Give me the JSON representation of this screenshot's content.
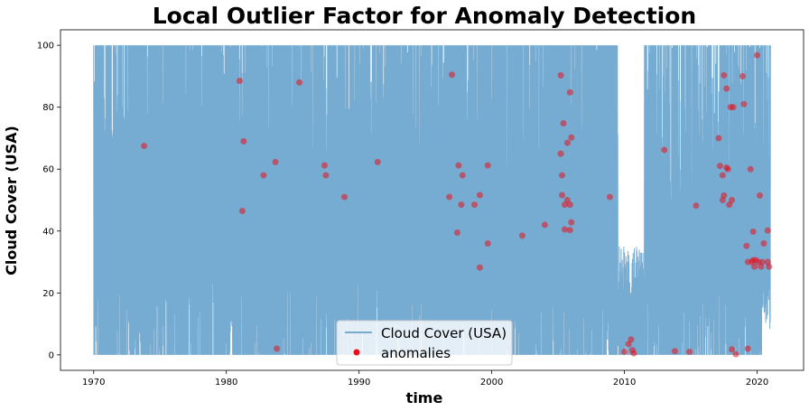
{
  "chart_data": {
    "type": "line",
    "title": "Local Outlier Factor for Anomaly Detection",
    "xlabel": "time",
    "ylabel": "Cloud Cover (USA)",
    "xlim": [
      1967.5,
      2023.5
    ],
    "ylim": [
      -5,
      105
    ],
    "xticks": [
      1970,
      1980,
      1990,
      2000,
      2010,
      2020
    ],
    "yticks": [
      0,
      20,
      40,
      60,
      80,
      100
    ],
    "grid": false,
    "legend_position": "bottom-center",
    "series": [
      {
        "name": "Cloud Cover (USA)",
        "kind": "line",
        "color": "#77acd2",
        "x_range": [
          1970,
          2021
        ],
        "y_range": [
          0,
          100
        ]
      },
      {
        "name": "anomalies",
        "kind": "scatter",
        "color": "#e8101c",
        "points": [
          [
            1973.8,
            67.5
          ],
          [
            1981.0,
            88.5
          ],
          [
            1981.3,
            69.0
          ],
          [
            1981.2,
            46.5
          ],
          [
            1982.8,
            58.0
          ],
          [
            1983.7,
            62.3
          ],
          [
            1983.8,
            2.0
          ],
          [
            1985.5,
            88.0
          ],
          [
            1987.4,
            61.2
          ],
          [
            1987.5,
            58.0
          ],
          [
            1988.9,
            51.0
          ],
          [
            1991.4,
            62.3
          ],
          [
            1997.0,
            90.5
          ],
          [
            1996.8,
            51.0
          ],
          [
            1997.5,
            61.2
          ],
          [
            1997.8,
            58.0
          ],
          [
            1997.7,
            48.5
          ],
          [
            1997.4,
            39.5
          ],
          [
            1998.7,
            48.5
          ],
          [
            1999.1,
            51.6
          ],
          [
            1999.1,
            28.2
          ],
          [
            1999.7,
            36.0
          ],
          [
            1999.7,
            61.2
          ],
          [
            2002.3,
            38.5
          ],
          [
            2004.0,
            42.0
          ],
          [
            2005.2,
            90.3
          ],
          [
            2005.9,
            84.8
          ],
          [
            2005.4,
            74.8
          ],
          [
            2006.0,
            70.2
          ],
          [
            2005.7,
            68.5
          ],
          [
            2005.2,
            65.0
          ],
          [
            2005.3,
            58.0
          ],
          [
            2005.3,
            51.6
          ],
          [
            2005.7,
            50.0
          ],
          [
            2005.5,
            48.5
          ],
          [
            2005.9,
            48.5
          ],
          [
            2006.0,
            42.8
          ],
          [
            2005.5,
            40.5
          ],
          [
            2005.9,
            40.3
          ],
          [
            2008.9,
            51.0
          ],
          [
            2010.0,
            1.0
          ],
          [
            2010.3,
            3.5
          ],
          [
            2010.5,
            5.0
          ],
          [
            2010.7,
            0.5
          ],
          [
            2010.6,
            1.5
          ],
          [
            2013.0,
            66.2
          ],
          [
            2013.8,
            1.2
          ],
          [
            2014.9,
            1.0
          ],
          [
            2015.4,
            48.2
          ],
          [
            2017.1,
            70.0
          ],
          [
            2017.2,
            61.0
          ],
          [
            2017.4,
            58.0
          ],
          [
            2017.5,
            90.3
          ],
          [
            2017.7,
            86.0
          ],
          [
            2017.7,
            60.5
          ],
          [
            2017.8,
            60.0
          ],
          [
            2017.5,
            51.5
          ],
          [
            2017.4,
            50.0
          ],
          [
            2017.9,
            48.5
          ],
          [
            2018.0,
            80.0
          ],
          [
            2018.2,
            80.0
          ],
          [
            2018.1,
            50.0
          ],
          [
            2018.1,
            1.8
          ],
          [
            2018.4,
            0.2
          ],
          [
            2018.9,
            90.0
          ],
          [
            2019.0,
            81.0
          ],
          [
            2019.2,
            35.2
          ],
          [
            2019.3,
            30.0
          ],
          [
            2019.5,
            60.0
          ],
          [
            2019.7,
            39.8
          ],
          [
            2019.7,
            30.6
          ],
          [
            2019.8,
            28.5
          ],
          [
            2019.3,
            2.0
          ],
          [
            2019.6,
            30.0
          ],
          [
            2019.9,
            30.6
          ],
          [
            2020.0,
            96.8
          ],
          [
            2020.1,
            30.0
          ],
          [
            2020.2,
            51.5
          ],
          [
            2020.3,
            28.5
          ],
          [
            2020.5,
            36.0
          ],
          [
            2020.8,
            40.2
          ],
          [
            2020.8,
            30.0
          ],
          [
            2020.9,
            28.5
          ],
          [
            2020.4,
            30.0
          ]
        ]
      }
    ]
  }
}
